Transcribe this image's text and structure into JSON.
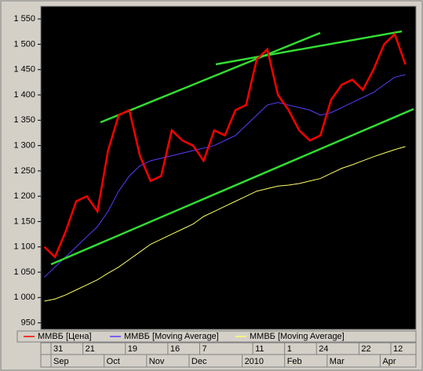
{
  "chart_data": {
    "type": "line",
    "categories": [
      null,
      "31",
      null,
      null,
      "21",
      null,
      null,
      null,
      "19",
      null,
      null,
      null,
      "16",
      null,
      null,
      "7",
      null,
      null,
      null,
      null,
      "11",
      null,
      null,
      "1",
      null,
      null,
      "24",
      null,
      null,
      null,
      "22",
      null,
      null,
      "12",
      null
    ],
    "month_labels": [
      null,
      "Sep",
      null,
      null,
      null,
      null,
      "Oct",
      null,
      null,
      null,
      "Nov",
      null,
      null,
      null,
      "Dec",
      null,
      null,
      null,
      null,
      "2010",
      null,
      null,
      null,
      "Feb",
      null,
      null,
      null,
      "Mar",
      null,
      null,
      null,
      null,
      "Apr",
      null,
      null
    ],
    "series": [
      {
        "name": "ММВБ [Цена]",
        "color": "#ff0000",
        "values": [
          1100,
          1080,
          1130,
          1190,
          1200,
          1170,
          1290,
          1360,
          1370,
          1280,
          1230,
          1240,
          1330,
          1310,
          1300,
          1270,
          1330,
          1320,
          1370,
          1380,
          1470,
          1490,
          1400,
          1370,
          1330,
          1310,
          1320,
          1390,
          1420,
          1430,
          1410,
          1450,
          1500,
          1520,
          1460
        ]
      },
      {
        "name": "ММВБ [Moving Average]",
        "color": "#5a3cff",
        "values": [
          1040,
          1060,
          1080,
          1100,
          1120,
          1140,
          1170,
          1210,
          1240,
          1260,
          1270,
          1275,
          1280,
          1285,
          1290,
          1295,
          1300,
          1310,
          1320,
          1340,
          1360,
          1380,
          1385,
          1380,
          1375,
          1370,
          1360,
          1365,
          1375,
          1385,
          1395,
          1405,
          1420,
          1435,
          1440
        ]
      },
      {
        "name": "ММВБ [Moving Average]",
        "color": "#ffff66",
        "values": [
          993,
          997,
          1005,
          1015,
          1025,
          1035,
          1048,
          1060,
          1075,
          1090,
          1105,
          1115,
          1125,
          1135,
          1145,
          1160,
          1170,
          1180,
          1190,
          1200,
          1210,
          1215,
          1220,
          1222,
          1225,
          1230,
          1235,
          1245,
          1255,
          1262,
          1270,
          1278,
          1285,
          1292,
          1298
        ]
      }
    ],
    "ylim": [
      937,
      1575
    ],
    "yticks": [
      950,
      {
        "value": 1000,
        "label": "1 000"
      },
      {
        "value": 1050,
        "label": "1 050"
      },
      {
        "value": 1100,
        "label": "1 100"
      },
      {
        "value": 1150,
        "label": "1 150"
      },
      {
        "value": 1200,
        "label": "1 200"
      },
      {
        "value": 1250,
        "label": "1 250"
      },
      {
        "value": 1300,
        "label": "1 300"
      },
      {
        "value": 1350,
        "label": "1 350"
      },
      {
        "value": 1400,
        "label": "1 400"
      },
      {
        "value": 1450,
        "label": "1 450"
      },
      {
        "value": 1500,
        "label": "1 500"
      },
      {
        "value": 1550,
        "label": "1 550"
      }
    ]
  }
}
